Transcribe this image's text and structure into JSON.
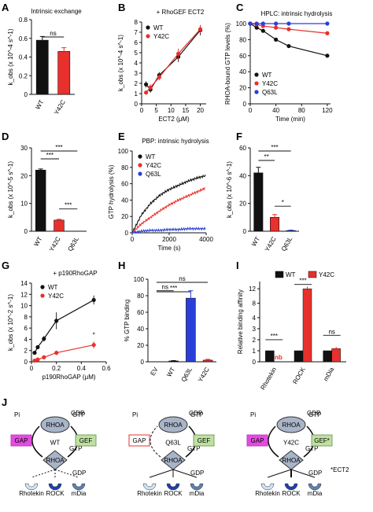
{
  "colors": {
    "black": "#111111",
    "red": "#e8302c",
    "blue": "#2a3fd8",
    "gap": "#e24ce0",
    "gef": "#bfe0a0",
    "node": "#a8b4c8",
    "rock": "#1f3fb0",
    "rhotekin": "#cfe3f5",
    "mdia": "#5f7fb0"
  },
  "labels": {
    "A": "A",
    "B": "B",
    "C": "C",
    "D": "D",
    "E": "E",
    "F": "F",
    "G": "G",
    "H": "H",
    "I": "I",
    "J": "J"
  },
  "scheme": {
    "gdp": "GDP",
    "gtp": "GTP",
    "rhoa": "RHOA",
    "pi": "Pi",
    "gap": "GAP",
    "gef": "GEF",
    "gef_star": "GEF*",
    "wt": "WT",
    "q63l": "Q63L",
    "y42c": "Y42C",
    "rhotekin": "Rhotekin",
    "rock": "ROCK",
    "mdia": "mDia",
    "ect2_note": "*ECT2"
  },
  "chart_data": [
    {
      "panel": "A",
      "type": "bar",
      "title": "Intrinsic exchange",
      "ylabel": "k_obs (x 10^-4 s^-1)",
      "ylim": [
        0,
        0.8
      ],
      "yticks": [
        "0",
        "0.2",
        "0.4",
        "0.6",
        "0.8"
      ],
      "categories": [
        "WT",
        "Y42C"
      ],
      "values": [
        0.58,
        0.46
      ],
      "errors": [
        0.04,
        0.04
      ],
      "colors": [
        "#111111",
        "#e8302c"
      ],
      "annotations": [
        {
          "text": "ns",
          "between": [
            "WT",
            "Y42C"
          ]
        }
      ]
    },
    {
      "panel": "B",
      "type": "line",
      "title": "+ RhoGEF ECT2",
      "xlabel": "ECT2 (μM)",
      "ylabel": "k_obs (x 10^-4 s^-1)",
      "xlim": [
        0,
        22
      ],
      "ylim": [
        0,
        8
      ],
      "xticks": [
        "0",
        "5",
        "10",
        "15",
        "20"
      ],
      "yticks": [
        "0",
        "1",
        "2",
        "3",
        "4",
        "5",
        "6",
        "7",
        "8"
      ],
      "series": [
        {
          "name": "WT",
          "x": [
            1.5,
            3,
            6,
            12.5,
            20
          ],
          "y": [
            1.9,
            1.4,
            2.8,
            4.6,
            7.2
          ],
          "errors": [
            0.3,
            0.3,
            0.3,
            0.5,
            0.5
          ]
        },
        {
          "name": "Y42C",
          "x": [
            1.5,
            3,
            6,
            12.5,
            20
          ],
          "y": [
            1.1,
            1.6,
            2.6,
            4.9,
            7.3
          ],
          "errors": [
            0.2,
            0.3,
            0.3,
            0.5,
            0.4
          ]
        }
      ]
    },
    {
      "panel": "C",
      "type": "line",
      "title": "HPLC: intrinsic hydrolysis",
      "xlabel": "Time (min)",
      "ylabel": "RHOA-bound GTP levels (%)",
      "xlim": [
        0,
        125
      ],
      "ylim": [
        0,
        100
      ],
      "xticks": [
        "0",
        "40",
        "80",
        "120"
      ],
      "yticks": [
        "0",
        "20",
        "40",
        "60",
        "80",
        "100"
      ],
      "series": [
        {
          "name": "WT",
          "x": [
            0,
            10,
            20,
            40,
            60,
            120
          ],
          "y": [
            100,
            95,
            91,
            80,
            72,
            60
          ]
        },
        {
          "name": "Y42C",
          "x": [
            0,
            10,
            20,
            40,
            60,
            120
          ],
          "y": [
            100,
            99,
            97,
            95,
            93,
            88
          ]
        },
        {
          "name": "Q63L",
          "x": [
            0,
            10,
            20,
            40,
            60,
            120
          ],
          "y": [
            100,
            100,
            100,
            100,
            100,
            100
          ]
        }
      ]
    },
    {
      "panel": "D",
      "type": "bar",
      "ylabel": "k_obs (x 10^-5 s^-1)",
      "ylim": [
        0,
        30
      ],
      "yticks": [
        "0",
        "10",
        "20",
        "30"
      ],
      "categories": [
        "WT",
        "Y42C",
        "Q63L"
      ],
      "values": [
        22,
        4,
        0
      ],
      "errors": [
        0.4,
        0.3,
        0
      ],
      "colors": [
        "#111111",
        "#e8302c",
        "#2a3fd8"
      ],
      "annotations": [
        {
          "text": "***",
          "between": [
            "WT",
            "Y42C"
          ]
        },
        {
          "text": "***",
          "between": [
            "WT",
            "Q63L"
          ]
        },
        {
          "text": "***",
          "between": [
            "Y42C",
            "Q63L"
          ]
        }
      ]
    },
    {
      "panel": "E",
      "type": "line",
      "title": "PBP: intrinsic hydrolysis",
      "xlabel": "Time (s)",
      "ylabel": "GTP hydrolysis (%)",
      "xlim": [
        0,
        4000
      ],
      "ylim": [
        0,
        100
      ],
      "xticks": [
        "0",
        "2000",
        "4000"
      ],
      "yticks": [
        "0",
        "20",
        "40",
        "60",
        "80",
        "100"
      ],
      "series": [
        {
          "name": "WT",
          "x": [
            0,
            500,
            1000,
            1500,
            2000,
            2500,
            3000,
            3500,
            4000
          ],
          "y": [
            0,
            22,
            36,
            46,
            53,
            58,
            63,
            67,
            70
          ]
        },
        {
          "name": "Y42C",
          "x": [
            0,
            500,
            1000,
            1500,
            2000,
            2500,
            3000,
            3500,
            4000
          ],
          "y": [
            0,
            11,
            19,
            27,
            34,
            40,
            45,
            50,
            55
          ]
        },
        {
          "name": "Q63L",
          "x": [
            0,
            500,
            1000,
            1500,
            2000,
            2500,
            3000,
            3500,
            4000
          ],
          "y": [
            0,
            2,
            3,
            3,
            4,
            4,
            5,
            5,
            5
          ]
        }
      ]
    },
    {
      "panel": "F",
      "type": "bar",
      "ylabel": "k_obs (x 10^-6 s^-1)",
      "ylim": [
        0,
        60
      ],
      "yticks": [
        "0",
        "20",
        "40",
        "60"
      ],
      "categories": [
        "WT",
        "Y42C",
        "Q63L"
      ],
      "values": [
        42,
        10,
        0.5
      ],
      "errors": [
        4,
        2,
        0.3
      ],
      "colors": [
        "#111111",
        "#e8302c",
        "#2a3fd8"
      ],
      "annotations": [
        {
          "text": "**",
          "between": [
            "WT",
            "Y42C"
          ]
        },
        {
          "text": "***",
          "between": [
            "WT",
            "Q63L"
          ]
        },
        {
          "text": "*",
          "between": [
            "Y42C",
            "Q63L"
          ]
        }
      ]
    },
    {
      "panel": "G",
      "type": "line",
      "title": "+ p190RhoGAP",
      "xlabel": "p190RhoGAP (μM)",
      "ylabel": "k_obs (x 10^-2 s^-1)",
      "xlim": [
        0,
        0.6
      ],
      "ylim": [
        0,
        14
      ],
      "xticks": [
        "0",
        "0.2",
        "0.4",
        "0.6"
      ],
      "yticks": [
        "0",
        "2",
        "4",
        "6",
        "8",
        "10",
        "12",
        "14"
      ],
      "series": [
        {
          "name": "WT",
          "x": [
            0.025,
            0.05,
            0.1,
            0.2,
            0.5
          ],
          "y": [
            1.6,
            2.6,
            4.1,
            7.3,
            11.0
          ],
          "errors": [
            0.2,
            0.3,
            0.5,
            1.5,
            0.8
          ]
        },
        {
          "name": "Y42C",
          "x": [
            0.025,
            0.05,
            0.1,
            0.2,
            0.5
          ],
          "y": [
            0.2,
            0.4,
            0.8,
            1.6,
            3.0
          ],
          "errors": [
            0.1,
            0.1,
            0.2,
            0.4,
            0.6
          ]
        }
      ],
      "annotations": [
        {
          "text": "*",
          "x": 0.5
        }
      ]
    },
    {
      "panel": "H",
      "type": "bar",
      "ylabel": "% GTP binding",
      "ylim": [
        0,
        100
      ],
      "yticks": [
        "0",
        "20",
        "40",
        "60",
        "80",
        "100"
      ],
      "categories": [
        "EV",
        "WT",
        "Q63L",
        "Y42C"
      ],
      "values": [
        0,
        1,
        77,
        2
      ],
      "errors": [
        0,
        0.5,
        9,
        1
      ],
      "colors": [
        "#111111",
        "#111111",
        "#2a3fd8",
        "#e8302c"
      ],
      "annotations": [
        {
          "text": "ns",
          "between": [
            "EV",
            "Y42C"
          ]
        },
        {
          "text": "***",
          "between": [
            "EV",
            "Q63L"
          ]
        },
        {
          "text": "ns",
          "between": [
            "EV",
            "WT"
          ]
        }
      ]
    },
    {
      "panel": "I",
      "type": "bar",
      "ylabel": "Relative binding affinity",
      "ylim": [
        0,
        14
      ],
      "yticks": [
        "0",
        "1",
        "2",
        "3",
        "4",
        "8",
        "12"
      ],
      "categories": [
        "Rhotekin",
        "ROCK",
        "mDia"
      ],
      "series": [
        {
          "name": "WT",
          "values": [
            1,
            1,
            1
          ],
          "errors": [
            0,
            0,
            0
          ]
        },
        {
          "name": "Y42C",
          "values": [
            0,
            12,
            1.2
          ],
          "errors": [
            0,
            0.6,
            0.15
          ]
        }
      ],
      "annotations": [
        {
          "text": "***",
          "between": [
            "Rhotekin"
          ]
        },
        {
          "text": "nb",
          "between": [
            "Rhotekin"
          ]
        },
        {
          "text": "***",
          "between": [
            "ROCK"
          ]
        },
        {
          "text": "ns",
          "between": [
            "mDia"
          ]
        }
      ]
    }
  ]
}
